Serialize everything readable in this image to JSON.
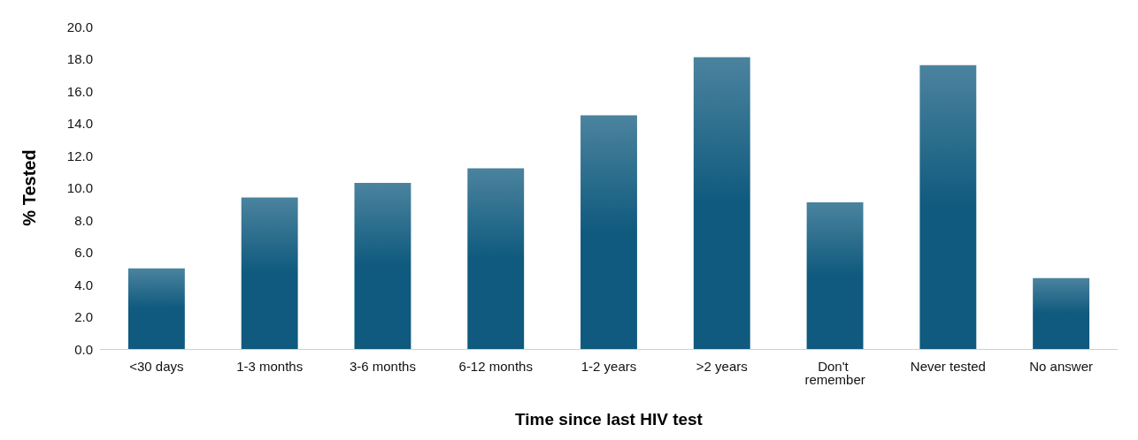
{
  "chart_data": {
    "type": "bar",
    "xlabel": "Time since last HIV test",
    "ylabel": "% Tested",
    "categories": [
      "<30 days",
      "1-3 months",
      "3-6 months",
      "6-12 months",
      "1-2 years",
      ">2 years",
      "Don't remember",
      "Never tested",
      "No answer"
    ],
    "values": [
      5.0,
      9.4,
      10.3,
      11.2,
      14.5,
      18.1,
      9.1,
      17.6,
      4.4
    ],
    "color": "#0f5a7e",
    "ylim": [
      0,
      20
    ],
    "yticks": [
      {
        "value": 0,
        "label": "0.0"
      },
      {
        "value": 2,
        "label": "2.0"
      },
      {
        "value": 4,
        "label": "4.0"
      },
      {
        "value": 6,
        "label": "6.0"
      },
      {
        "value": 8,
        "label": "8.0"
      },
      {
        "value": 10,
        "label": "10.0"
      },
      {
        "value": 12,
        "label": "12.0"
      },
      {
        "value": 14,
        "label": "14.0"
      },
      {
        "value": 16,
        "label": "16.0"
      },
      {
        "value": 18,
        "label": "18.0"
      },
      {
        "value": 20,
        "label": "20.0"
      }
    ],
    "grid": false
  }
}
